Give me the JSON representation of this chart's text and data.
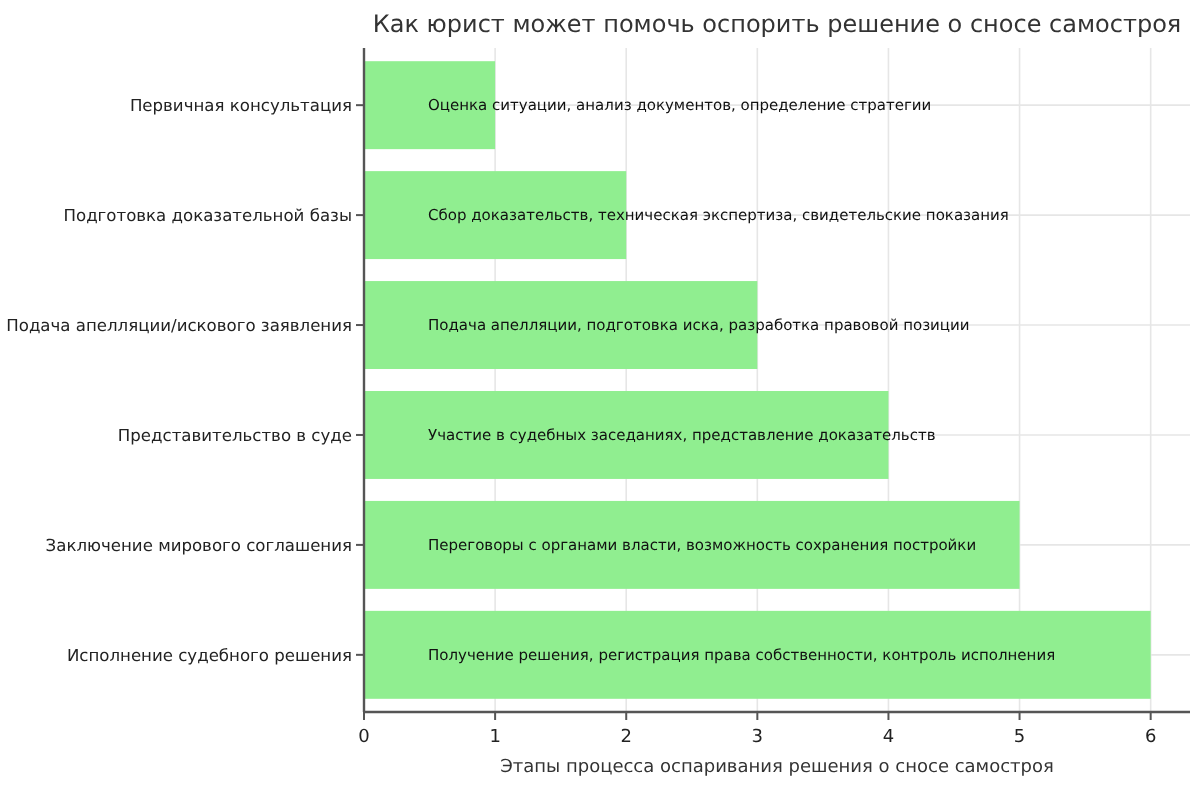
{
  "chart_data": {
    "type": "bar",
    "orientation": "horizontal",
    "title": "Как юрист может помочь оспорить решение о сносе самостроя",
    "xlabel": "Этапы процесса оспаривания решения о сносе самостроя",
    "categories": [
      "Первичная консультация",
      "Подготовка доказательной базы",
      "Подача апелляции/искового заявления",
      "Представительство в суде",
      "Заключение мирового соглашения",
      "Исполнение судебного решения"
    ],
    "values": [
      1,
      2,
      3,
      4,
      5,
      6
    ],
    "color": "#90ee90",
    "xlim": [
      0,
      6.3
    ],
    "xticks": [
      0,
      1,
      2,
      3,
      4,
      5,
      6
    ],
    "grid": true,
    "annotations": [
      "Оценка ситуации, анализ документов, определение стратегии",
      "Сбор доказательств, техническая экспертиза, свидетельские показания",
      "Подача апелляции, подготовка иска, разработка правовой позиции",
      "Участие в судебных заседаниях, представление доказательств",
      "Переговоры с органами власти, возможность сохранения постройки",
      "Получение решения, регистрация права собственности, контроль исполнения"
    ]
  }
}
